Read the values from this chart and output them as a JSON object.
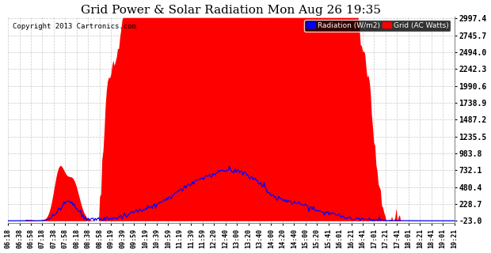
{
  "title": "Grid Power & Solar Radiation Mon Aug 26 19:35",
  "copyright": "Copyright 2013 Cartronics.com",
  "legend_radiation": "Radiation (W/m2)",
  "legend_grid": "Grid (AC Watts)",
  "yticks": [
    -23.0,
    228.7,
    480.4,
    732.1,
    983.8,
    1235.5,
    1487.2,
    1738.9,
    1990.6,
    2242.3,
    2494.0,
    2745.7,
    2997.4
  ],
  "ymin": -23.0,
  "ymax": 2997.4,
  "background_color": "#ffffff",
  "plot_background": "#ffffff",
  "grid_color": "#bbbbbb",
  "red_fill_color": "#ff0000",
  "blue_line_color": "#0000ff",
  "title_fontsize": 11,
  "tick_fontsize": 7,
  "time_labels": [
    "06:18",
    "06:38",
    "06:58",
    "07:18",
    "07:38",
    "07:58",
    "08:18",
    "08:38",
    "08:58",
    "09:19",
    "09:39",
    "09:59",
    "10:19",
    "10:39",
    "10:59",
    "11:19",
    "11:39",
    "11:59",
    "12:20",
    "12:40",
    "13:00",
    "13:20",
    "13:40",
    "14:00",
    "14:20",
    "14:40",
    "15:00",
    "15:20",
    "15:41",
    "16:01",
    "16:21",
    "16:41",
    "17:01",
    "17:21",
    "17:41",
    "18:01",
    "18:21",
    "18:41",
    "19:01",
    "19:21"
  ]
}
